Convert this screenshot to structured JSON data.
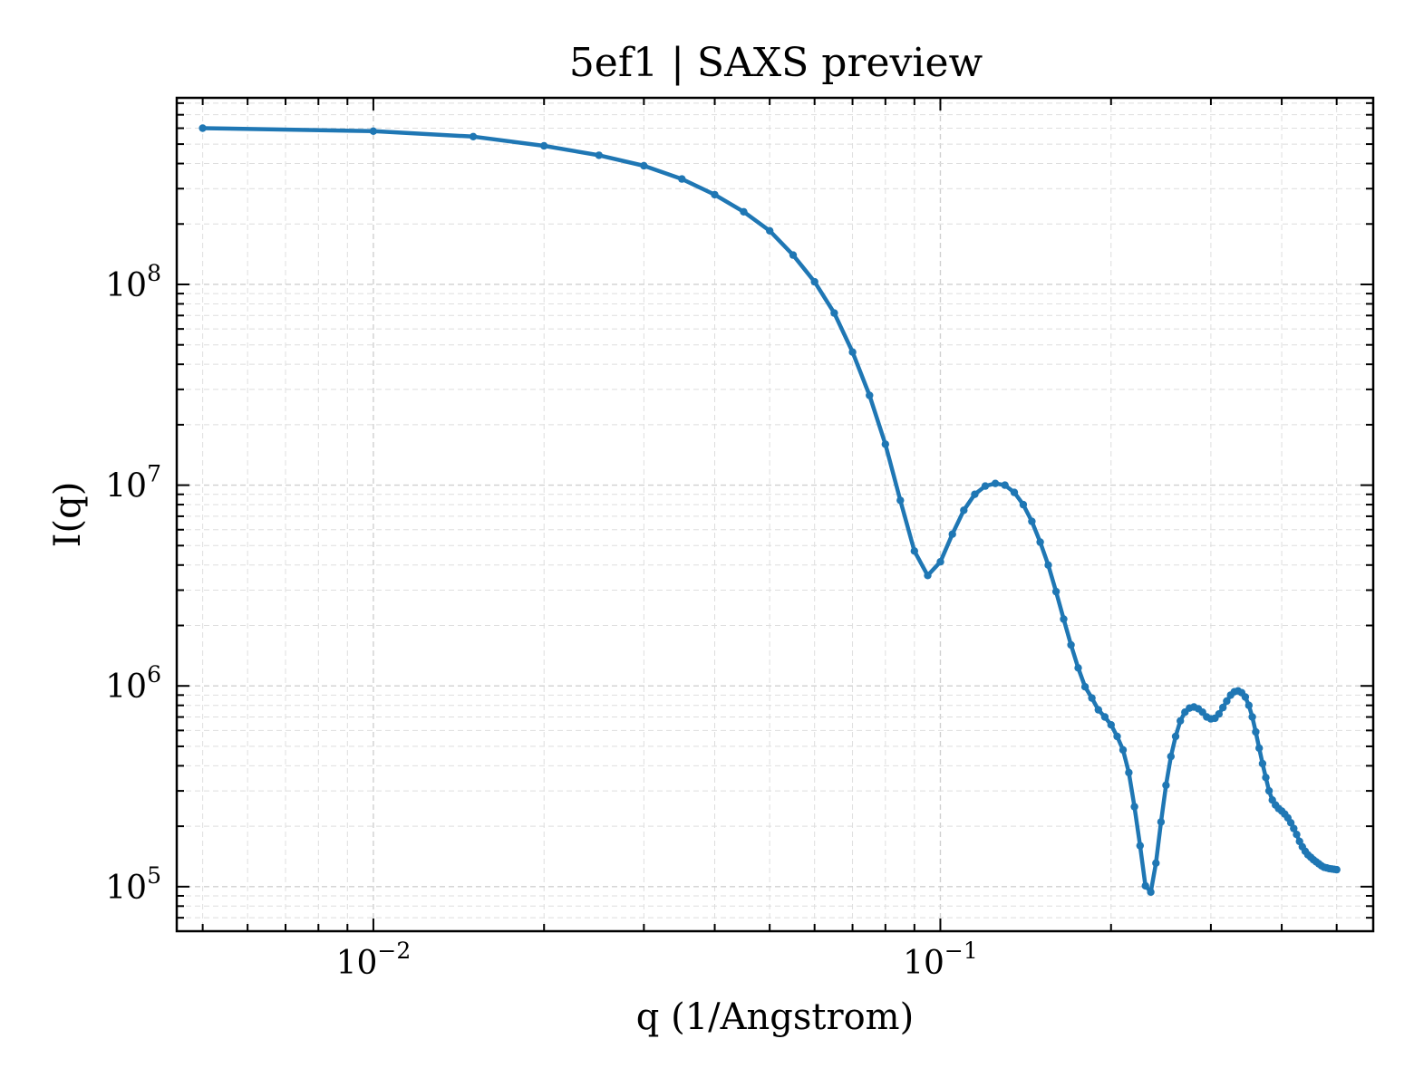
{
  "chart_data": {
    "type": "line",
    "title": "5ef1 | SAXS preview",
    "xlabel": "q (1/Angstrom)",
    "ylabel": "I(q)",
    "xscale": "log",
    "yscale": "log",
    "xlim": [
      0.0045,
      0.58
    ],
    "ylim": [
      60000,
      850000000
    ],
    "grid": true,
    "series_color": "#1f77b4",
    "x_ticks": [
      {
        "base": "10",
        "exp": "−2",
        "value": 0.01
      },
      {
        "base": "10",
        "exp": "−1",
        "value": 0.1
      }
    ],
    "y_ticks": [
      {
        "base": "10",
        "exp": "5",
        "value": 100000
      },
      {
        "base": "10",
        "exp": "6",
        "value": 1000000
      },
      {
        "base": "10",
        "exp": "7",
        "value": 10000000
      },
      {
        "base": "10",
        "exp": "8",
        "value": 100000000
      }
    ],
    "x": [
      0.005,
      0.01,
      0.015,
      0.02,
      0.025,
      0.03,
      0.035,
      0.04,
      0.045,
      0.05,
      0.055,
      0.06,
      0.065,
      0.07,
      0.075,
      0.08,
      0.085,
      0.09,
      0.095,
      0.1,
      0.105,
      0.11,
      0.115,
      0.12,
      0.125,
      0.13,
      0.135,
      0.14,
      0.145,
      0.15,
      0.155,
      0.16,
      0.165,
      0.17,
      0.175,
      0.18,
      0.185,
      0.19,
      0.195,
      0.2,
      0.205,
      0.21,
      0.215,
      0.22,
      0.225,
      0.23,
      0.235,
      0.24,
      0.245,
      0.25,
      0.255,
      0.26,
      0.265,
      0.27,
      0.275,
      0.28,
      0.285,
      0.29,
      0.295,
      0.3,
      0.305,
      0.31,
      0.315,
      0.32,
      0.325,
      0.33,
      0.335,
      0.34,
      0.345,
      0.35,
      0.355,
      0.36,
      0.365,
      0.37,
      0.375,
      0.38,
      0.385,
      0.39,
      0.395,
      0.4,
      0.405,
      0.41,
      0.415,
      0.42,
      0.425,
      0.43,
      0.435,
      0.44,
      0.445,
      0.45,
      0.455,
      0.46,
      0.465,
      0.47,
      0.475,
      0.48,
      0.485,
      0.49,
      0.495,
      0.5
    ],
    "y": [
      600000000,
      580000000,
      545000000,
      490000000,
      440000000,
      390000000,
      335000000,
      280000000,
      230000000,
      185000000,
      140000000,
      103000000,
      72000000,
      46000000,
      28000000,
      16000000,
      8400000,
      4700000,
      3550000,
      4150000,
      5700000,
      7500000,
      9000000,
      9900000,
      10200000,
      10000000,
      9200000,
      8000000,
      6600000,
      5200000,
      4000000,
      2950000,
      2150000,
      1600000,
      1230000,
      990000,
      870000,
      760000,
      700000,
      640000,
      560000,
      480000,
      370000,
      250000,
      160000,
      101000,
      94000,
      131000,
      210000,
      320000,
      445000,
      560000,
      670000,
      740000,
      775000,
      785000,
      770000,
      740000,
      700000,
      685000,
      690000,
      725000,
      780000,
      840000,
      900000,
      935000,
      945000,
      925000,
      880000,
      800000,
      700000,
      590000,
      490000,
      410000,
      350000,
      300000,
      270000,
      255000,
      245000,
      238000,
      230000,
      220000,
      208000,
      195000,
      182000,
      168000,
      158000,
      150000,
      144000,
      140000,
      136000,
      133000,
      130000,
      127000,
      125000,
      124000,
      123000,
      122500,
      122000,
      121500
    ]
  }
}
